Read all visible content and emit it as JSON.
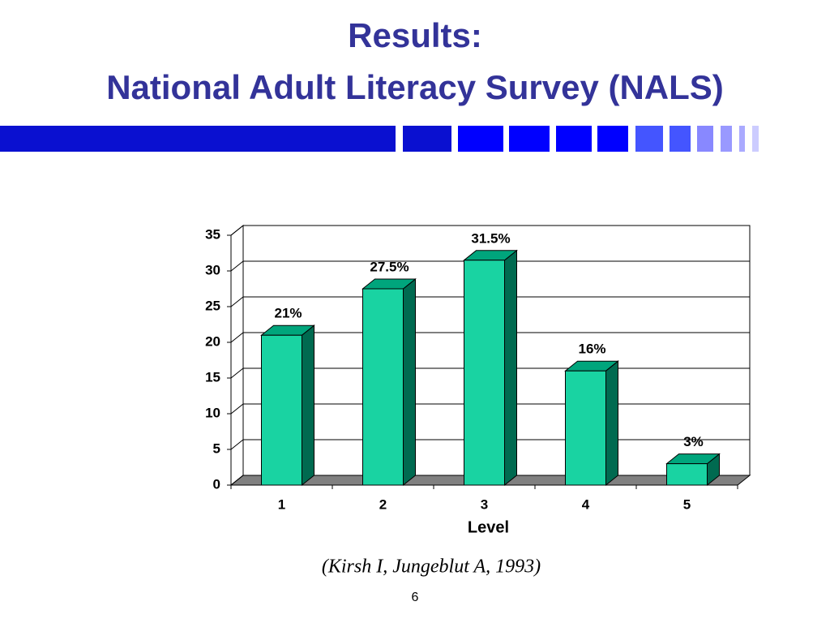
{
  "chart_data": {
    "type": "bar3d",
    "title": "Results:",
    "subtitle": "National Adult Literacy Survey (NALS)",
    "x_label": "Level",
    "categories": [
      "1",
      "2",
      "3",
      "4",
      "5"
    ],
    "values": [
      21,
      27.5,
      31.5,
      16,
      3
    ],
    "value_labels": [
      "21%",
      "27.5%",
      "31.5%",
      "16%",
      "3%"
    ],
    "color": "#19d3a2",
    "ylim": [
      0,
      35
    ],
    "yticks": [
      0,
      5,
      10,
      15,
      20,
      25,
      30,
      35
    ],
    "grid": true
  },
  "slide": {
    "citation": "(Kirsh I, Jungeblut A, 1993)",
    "page_number": "6"
  }
}
